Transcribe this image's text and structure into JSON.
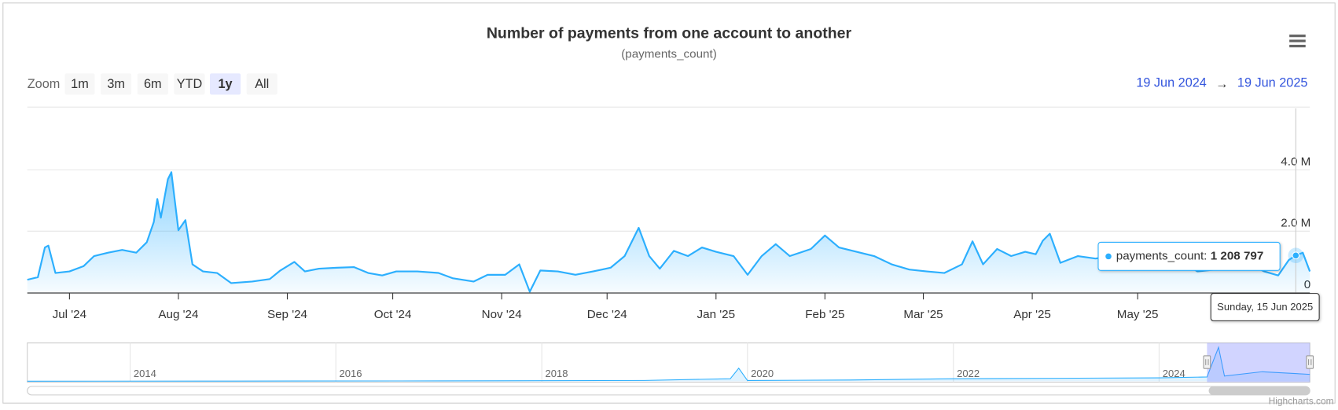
{
  "chart_data": {
    "type": "area",
    "title": "Number of payments from one account to another",
    "subtitle": "(payments_count)",
    "zoom_label": "Zoom",
    "zoom_buttons": [
      "1m",
      "3m",
      "6m",
      "YTD",
      "1y",
      "All"
    ],
    "zoom_selected": "1y",
    "range_from": "19 Jun 2024",
    "range_separator": "→",
    "range_to": "19 Jun 2025",
    "credits": "Highcharts.com",
    "grid": true,
    "xlim": [
      "2024-06-19",
      "2025-06-19"
    ],
    "ylim": [
      0,
      6000000
    ],
    "yticks": [
      0,
      {
        "value": 2000000,
        "label": "2.0 M"
      },
      {
        "value": 4000000,
        "label": "4.0 M"
      }
    ],
    "xticks": [
      {
        "value": "2024-07-01",
        "label": "Jul '24"
      },
      {
        "value": "2024-08-01",
        "label": "Aug '24"
      },
      {
        "value": "2024-09-01",
        "label": "Sep '24"
      },
      {
        "value": "2024-10-01",
        "label": "Oct '24"
      },
      {
        "value": "2024-11-01",
        "label": "Nov '24"
      },
      {
        "value": "2024-12-01",
        "label": "Dec '24"
      },
      {
        "value": "2025-01-01",
        "label": "Jan '25"
      },
      {
        "value": "2025-02-01",
        "label": "Feb '25"
      },
      {
        "value": "2025-03-01",
        "label": "Mar '25"
      },
      {
        "value": "2025-04-01",
        "label": "Apr '25"
      },
      {
        "value": "2025-05-01",
        "label": "May '25"
      }
    ],
    "x": [
      "2024-06-19",
      "2024-06-22",
      "2024-06-24",
      "2024-06-25",
      "2024-06-27",
      "2024-07-01",
      "2024-07-05",
      "2024-07-08",
      "2024-07-12",
      "2024-07-16",
      "2024-07-20",
      "2024-07-23",
      "2024-07-25",
      "2024-07-26",
      "2024-07-27",
      "2024-07-29",
      "2024-07-30",
      "2024-08-01",
      "2024-08-03",
      "2024-08-05",
      "2024-08-08",
      "2024-08-12",
      "2024-08-16",
      "2024-08-22",
      "2024-08-27",
      "2024-08-30",
      "2024-09-03",
      "2024-09-06",
      "2024-09-10",
      "2024-09-15",
      "2024-09-20",
      "2024-09-24",
      "2024-09-28",
      "2024-10-02",
      "2024-10-08",
      "2024-10-14",
      "2024-10-18",
      "2024-10-24",
      "2024-10-28",
      "2024-11-02",
      "2024-11-06",
      "2024-11-09",
      "2024-11-12",
      "2024-11-17",
      "2024-11-22",
      "2024-11-27",
      "2024-12-02",
      "2024-12-06",
      "2024-12-10",
      "2024-12-13",
      "2024-12-16",
      "2024-12-20",
      "2024-12-24",
      "2024-12-28",
      "2025-01-01",
      "2025-01-06",
      "2025-01-10",
      "2025-01-14",
      "2025-01-18",
      "2025-01-22",
      "2025-01-28",
      "2025-02-01",
      "2025-02-05",
      "2025-02-10",
      "2025-02-15",
      "2025-02-20",
      "2025-02-25",
      "2025-03-02",
      "2025-03-07",
      "2025-03-12",
      "2025-03-15",
      "2025-03-18",
      "2025-03-22",
      "2025-03-26",
      "2025-03-30",
      "2025-04-02",
      "2025-04-04",
      "2025-04-06",
      "2025-04-09",
      "2025-04-14",
      "2025-04-19",
      "2025-04-24",
      "2025-04-29",
      "2025-05-03",
      "2025-05-08",
      "2025-05-13",
      "2025-05-18",
      "2025-05-23",
      "2025-05-28",
      "2025-06-02",
      "2025-06-06",
      "2025-06-10",
      "2025-06-13",
      "2025-06-15",
      "2025-06-17",
      "2025-06-19"
    ],
    "series": [
      {
        "name": "payments_count",
        "color": "#2caffe",
        "values": [
          420000,
          500000,
          1470000,
          1530000,
          640000,
          690000,
          860000,
          1190000,
          1300000,
          1390000,
          1300000,
          1640000,
          2300000,
          3050000,
          2440000,
          3690000,
          3920000,
          2030000,
          2360000,
          920000,
          690000,
          640000,
          310000,
          360000,
          440000,
          720000,
          1000000,
          690000,
          780000,
          810000,
          830000,
          640000,
          560000,
          690000,
          690000,
          640000,
          470000,
          360000,
          580000,
          580000,
          920000,
          30000,
          720000,
          690000,
          580000,
          690000,
          810000,
          1190000,
          2110000,
          1190000,
          780000,
          1360000,
          1190000,
          1470000,
          1330000,
          1190000,
          580000,
          1190000,
          1580000,
          1190000,
          1420000,
          1860000,
          1470000,
          1330000,
          1190000,
          920000,
          750000,
          690000,
          640000,
          920000,
          1670000,
          920000,
          1420000,
          1190000,
          1330000,
          1250000,
          1690000,
          1920000,
          970000,
          1190000,
          1110000,
          1190000,
          1060000,
          1250000,
          970000,
          1060000,
          690000,
          750000,
          860000,
          920000,
          690000,
          560000,
          1060000,
          1208797,
          1300000,
          690000
        ]
      }
    ],
    "tooltip": {
      "label": "payments_count:",
      "value": 1208797,
      "value_label": "1 208 797",
      "date_label": "Sunday, 15 Jun 2025"
    },
    "navigator": {
      "xlim": [
        "2013-01-01",
        "2025-06-19"
      ],
      "ylim": [
        0,
        4300000
      ],
      "xticks": [
        {
          "value": "2014-01-01",
          "label": "2014"
        },
        {
          "value": "2016-01-01",
          "label": "2016"
        },
        {
          "value": "2018-01-01",
          "label": "2018"
        },
        {
          "value": "2020-01-01",
          "label": "2020"
        },
        {
          "value": "2022-01-01",
          "label": "2022"
        },
        {
          "value": "2024-01-01",
          "label": "2024"
        }
      ],
      "x": [
        "2013-01-01",
        "2015-01-01",
        "2017-01-01",
        "2019-01-01",
        "2019-11-01",
        "2019-12-01",
        "2020-01-01",
        "2021-01-01",
        "2022-01-01",
        "2023-01-01",
        "2024-01-01",
        "2024-06-19",
        "2024-07-30",
        "2024-08-20",
        "2025-01-01",
        "2025-06-19"
      ],
      "values": [
        20000,
        30000,
        50000,
        100000,
        300000,
        1500000,
        100000,
        150000,
        300000,
        350000,
        400000,
        500000,
        3900000,
        600000,
        1100000,
        800000
      ]
    }
  }
}
